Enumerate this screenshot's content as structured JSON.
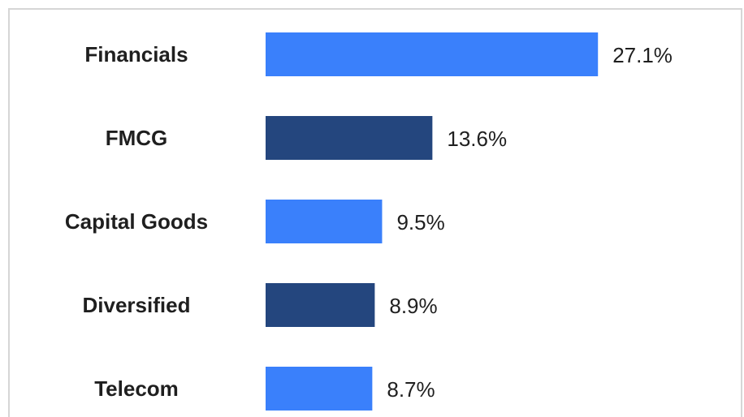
{
  "chart_data": {
    "type": "bar",
    "orientation": "horizontal",
    "categories": [
      "Financials",
      "FMCG",
      "Capital Goods",
      "Diversified",
      "Telecom"
    ],
    "values": [
      27.1,
      13.6,
      9.5,
      8.9,
      8.7
    ],
    "value_labels": [
      "27.1%",
      "13.6%",
      "9.5%",
      "8.9%",
      "8.7%"
    ],
    "bar_colors": [
      "#3a80fb",
      "#24467e",
      "#3a80fb",
      "#24467e",
      "#3a80fb"
    ],
    "title": "",
    "xlabel": "",
    "ylabel": "",
    "grid": false,
    "legend": "none"
  }
}
